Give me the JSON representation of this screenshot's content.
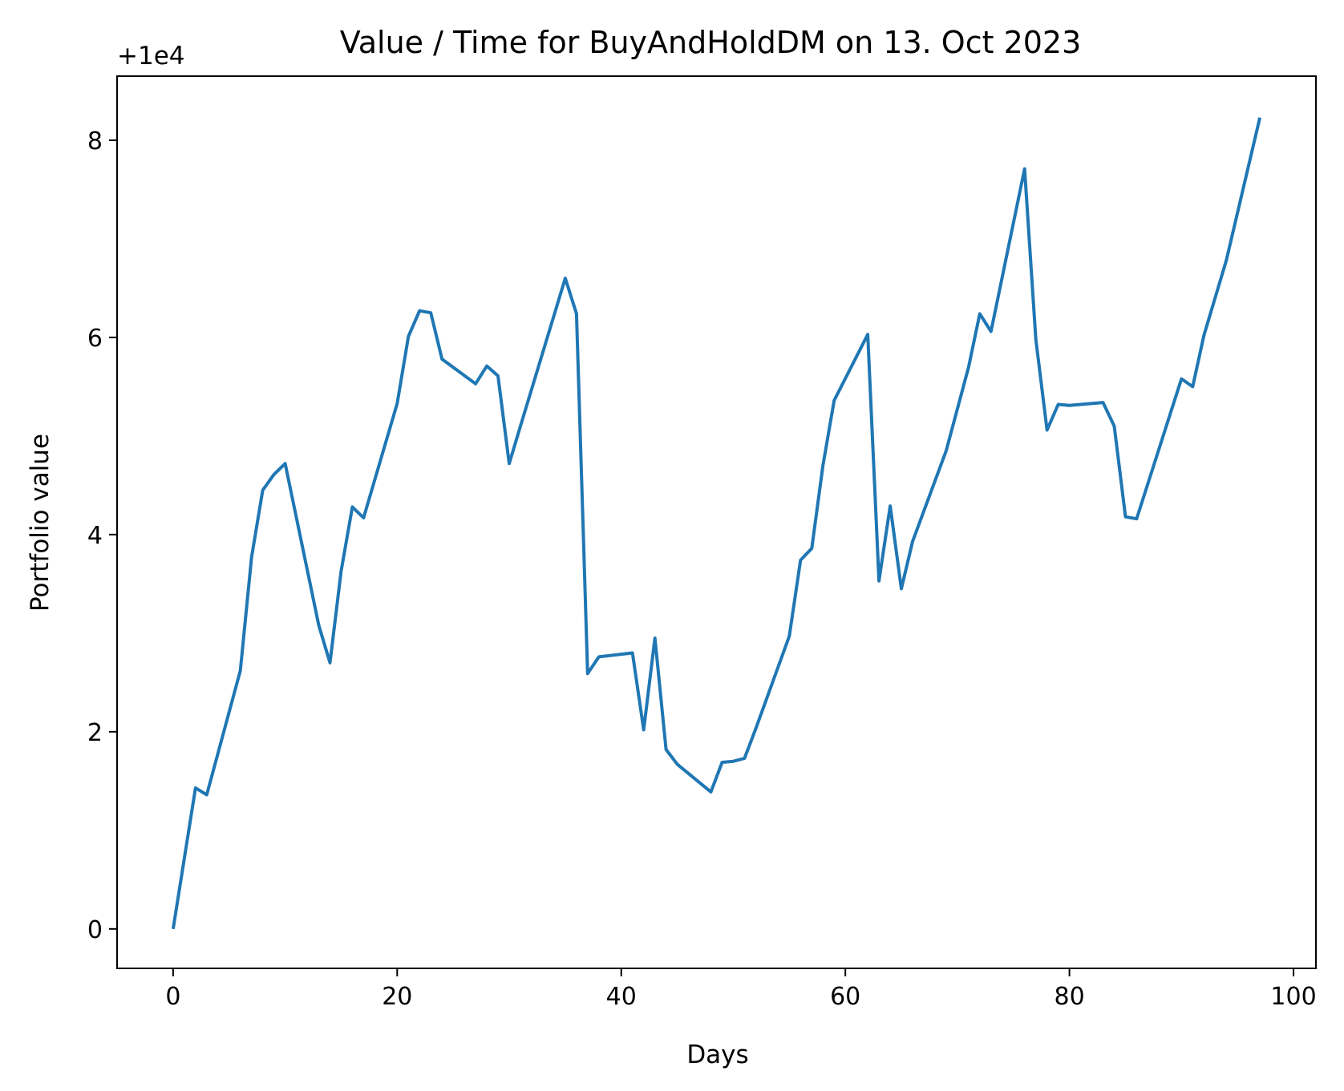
{
  "chart_data": {
    "type": "line",
    "title": "Value / Time for BuyAndHoldDM on 13. Oct 2023",
    "xlabel": "Days",
    "ylabel": "Portfolio value",
    "y_offset_label": "+1e4",
    "xlim": [
      -5,
      102
    ],
    "ylim": [
      -0.4,
      8.65
    ],
    "xticks": [
      0,
      20,
      40,
      60,
      80,
      100
    ],
    "yticks": [
      0,
      2,
      4,
      6,
      8
    ],
    "grid": false,
    "line_color": "#1f77b4",
    "series": [
      {
        "x": [
          0,
          2,
          3,
          6,
          7,
          8,
          9,
          10,
          13,
          14,
          15,
          16,
          17,
          20,
          21,
          22,
          23,
          24,
          27,
          28,
          29,
          30,
          31,
          35,
          36,
          37,
          38,
          41,
          42,
          43,
          44,
          45,
          48,
          49,
          50,
          51,
          52,
          55,
          56,
          57,
          58,
          59,
          62,
          63,
          64,
          65,
          66,
          69,
          71,
          72,
          73,
          76,
          77,
          78,
          79,
          80,
          83,
          84,
          85,
          86,
          90,
          91,
          92,
          94,
          97
        ],
        "y": [
          0.0,
          1.43,
          1.36,
          2.62,
          3.77,
          4.45,
          4.61,
          4.72,
          3.08,
          2.7,
          3.63,
          4.28,
          4.17,
          5.33,
          6.01,
          6.27,
          6.25,
          5.78,
          5.53,
          5.71,
          5.61,
          4.72,
          5.1,
          6.6,
          6.24,
          2.59,
          2.76,
          2.8,
          2.02,
          2.95,
          1.82,
          1.67,
          1.39,
          1.69,
          1.7,
          1.73,
          2.03,
          2.97,
          3.74,
          3.86,
          4.7,
          5.36,
          6.03,
          3.53,
          4.29,
          3.45,
          3.93,
          4.85,
          5.7,
          6.24,
          6.06,
          7.71,
          5.98,
          5.06,
          5.32,
          5.31,
          5.34,
          5.1,
          4.18,
          4.16,
          5.58,
          5.5,
          6.02,
          6.78,
          8.23
        ]
      }
    ]
  }
}
